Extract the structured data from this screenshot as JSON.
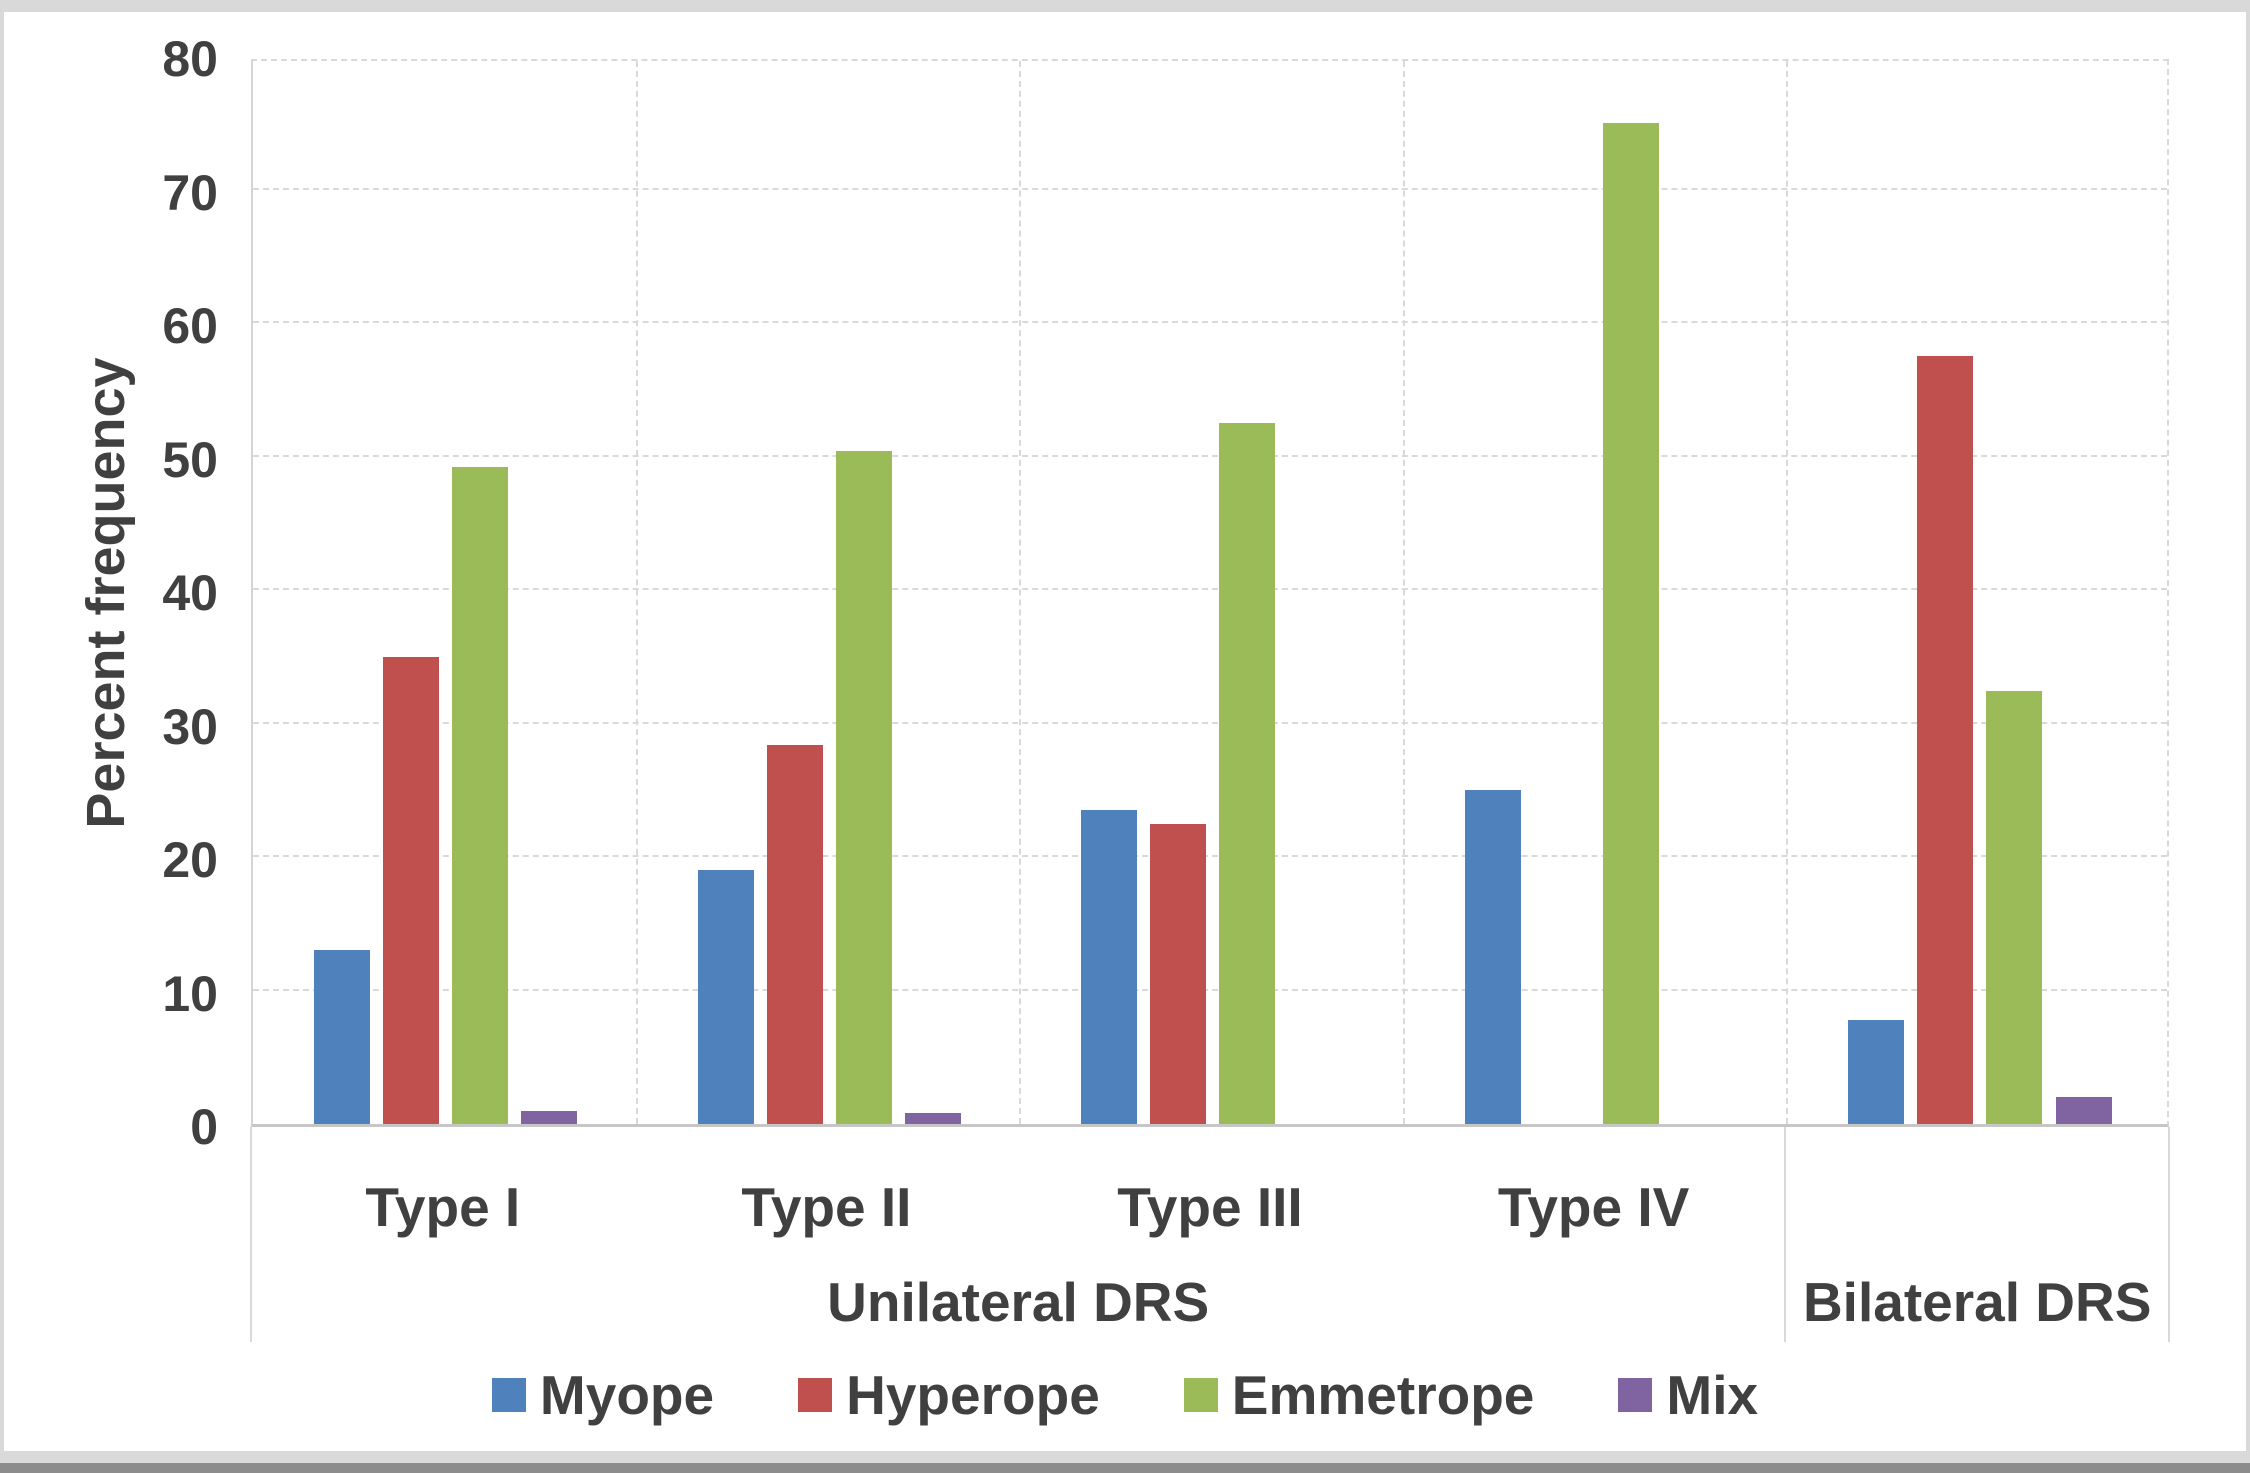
{
  "chart_data": {
    "type": "bar",
    "title": "",
    "ylabel": "Percent frequency",
    "xlabel": "",
    "ylim": [
      0,
      80
    ],
    "yticks": [
      0,
      10,
      20,
      30,
      40,
      50,
      60,
      70,
      80
    ],
    "grid": "horizontal gridlines every 10 units; dashed vertical separators between categories",
    "legend_position": "bottom",
    "categories": [
      "Type I",
      "Type II",
      "Type III",
      "Type IV",
      "Bilateral DRS"
    ],
    "axis_tier1_labels": [
      "Type I",
      "Type II",
      "Type III",
      "Type IV",
      ""
    ],
    "axis_tier2_groups": [
      {
        "label": "Unilateral DRS",
        "start_category": 0,
        "end_category": 3
      },
      {
        "label": "Bilateral DRS",
        "start_category": 4,
        "end_category": 4
      }
    ],
    "series": [
      {
        "name": "Myope",
        "color": "#4F81BD",
        "values": [
          13,
          19,
          23.5,
          25,
          7.8
        ]
      },
      {
        "name": "Hyperope",
        "color": "#C0504D",
        "values": [
          35,
          28.4,
          22.5,
          0,
          57.5
        ]
      },
      {
        "name": "Emmetrope",
        "color": "#9BBB59",
        "values": [
          49.2,
          50.4,
          52.5,
          75,
          32.4
        ]
      },
      {
        "name": "Mix",
        "color": "#8064A2",
        "values": [
          1,
          0.8,
          0,
          0,
          2
        ]
      }
    ]
  },
  "colors": {
    "axis_text": "#404040",
    "gridline": "#D9D9D9",
    "frame_border": "#D9D9D9",
    "bottom_rule": "#8C8C8C",
    "background": "#FFFFFF"
  }
}
